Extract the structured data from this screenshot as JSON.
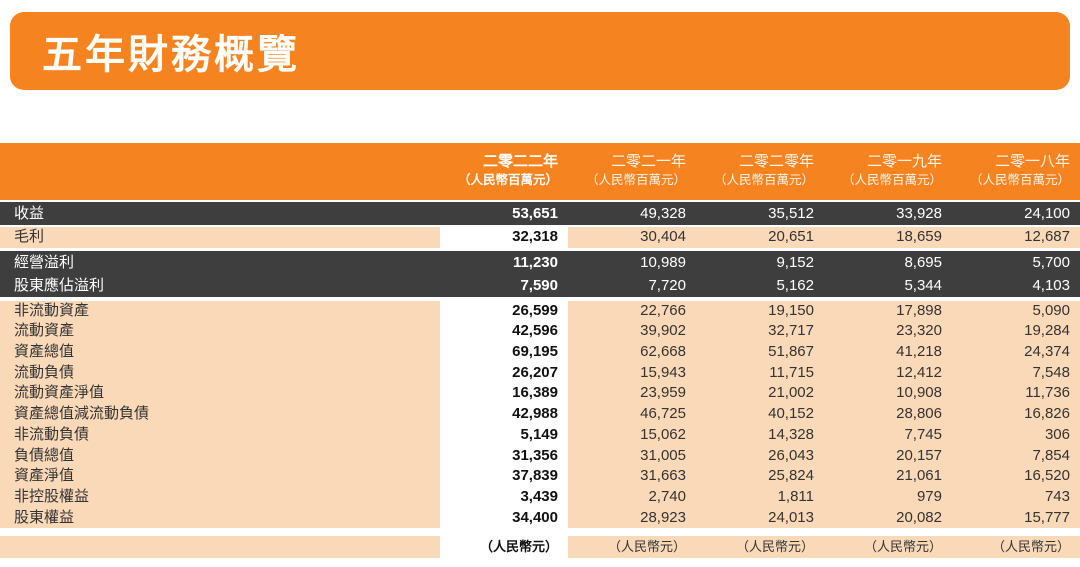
{
  "page": {
    "title": "五年財務概覽"
  },
  "colors": {
    "orange": "#F5831F",
    "peach": "#FAD9B8",
    "dark": "#3E3E3E",
    "highlight": "#FFFFFF"
  },
  "table": {
    "columns": [
      {
        "year": "二零二二年",
        "unit": "（人民幣百萬元）",
        "highlight": true
      },
      {
        "year": "二零二一年",
        "unit": "（人民幣百萬元）",
        "highlight": false
      },
      {
        "year": "二零二零年",
        "unit": "（人民幣百萬元）",
        "highlight": false
      },
      {
        "year": "二零一九年",
        "unit": "（人民幣百萬元）",
        "highlight": false
      },
      {
        "year": "二零一八年",
        "unit": "（人民幣百萬元）",
        "highlight": false
      }
    ],
    "sections": [
      {
        "style": "dark",
        "rows": [
          {
            "label": "收益",
            "values": [
              "53,651",
              "49,328",
              "35,512",
              "33,928",
              "24,100"
            ]
          }
        ]
      },
      {
        "style": "light",
        "rows": [
          {
            "label": "毛利",
            "values": [
              "32,318",
              "30,404",
              "20,651",
              "18,659",
              "12,687"
            ]
          }
        ]
      },
      {
        "style": "dark",
        "rows": [
          {
            "label": "經營溢利",
            "values": [
              "11,230",
              "10,989",
              "9,152",
              "8,695",
              "5,700"
            ]
          },
          {
            "label": "股東應佔溢利",
            "values": [
              "7,590",
              "7,720",
              "5,162",
              "5,344",
              "4,103"
            ]
          }
        ]
      },
      {
        "style": "light",
        "rows": [
          {
            "label": "非流動資產",
            "values": [
              "26,599",
              "22,766",
              "19,150",
              "17,898",
              "5,090"
            ]
          },
          {
            "label": "流動資產",
            "values": [
              "42,596",
              "39,902",
              "32,717",
              "23,320",
              "19,284"
            ]
          },
          {
            "label": "資產總值",
            "values": [
              "69,195",
              "62,668",
              "51,867",
              "41,218",
              "24,374"
            ]
          },
          {
            "label": "流動負債",
            "values": [
              "26,207",
              "15,943",
              "11,715",
              "12,412",
              "7,548"
            ]
          },
          {
            "label": "流動資產淨值",
            "values": [
              "16,389",
              "23,959",
              "21,002",
              "10,908",
              "11,736"
            ]
          },
          {
            "label": "資產總值減流動負債",
            "values": [
              "42,988",
              "46,725",
              "40,152",
              "28,806",
              "16,826"
            ]
          },
          {
            "label": "非流動負債",
            "values": [
              "5,149",
              "15,062",
              "14,328",
              "7,745",
              "306"
            ]
          },
          {
            "label": "負債總值",
            "values": [
              "31,356",
              "31,005",
              "26,043",
              "20,157",
              "7,854"
            ]
          },
          {
            "label": "資產淨值",
            "values": [
              "37,839",
              "31,663",
              "25,824",
              "21,061",
              "16,520"
            ]
          },
          {
            "label": "非控股權益",
            "values": [
              "3,439",
              "2,740",
              "1,811",
              "979",
              "743"
            ]
          },
          {
            "label": "股東權益",
            "values": [
              "34,400",
              "28,923",
              "24,013",
              "20,082",
              "15,777"
            ]
          }
        ]
      },
      {
        "style": "footer",
        "rows": [
          {
            "label": "",
            "values": [
              "（人民幣元）",
              "（人民幣元）",
              "（人民幣元）",
              "（人民幣元）",
              "（人民幣元）"
            ]
          }
        ]
      }
    ]
  }
}
